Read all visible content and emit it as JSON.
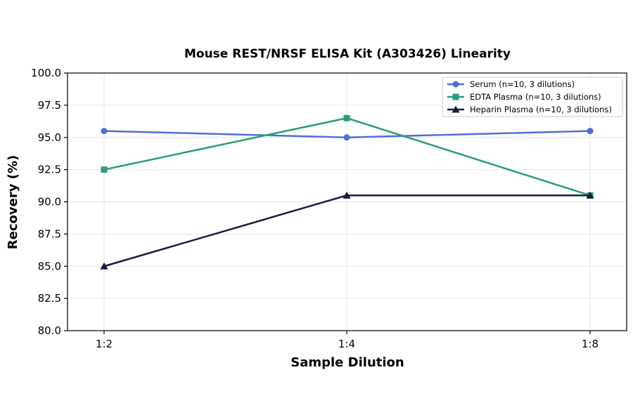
{
  "chart_data": {
    "type": "line",
    "title": "Mouse REST/NRSF ELISA Kit (A303426) Linearity",
    "xlabel": "Sample Dilution",
    "ylabel": "Recovery (%)",
    "categories": [
      "1:2",
      "1:4",
      "1:8"
    ],
    "ylim": [
      80.0,
      100.0
    ],
    "yticks": [
      "80.0",
      "82.5",
      "85.0",
      "87.5",
      "90.0",
      "92.5",
      "95.0",
      "97.5",
      "100.0"
    ],
    "grid": true,
    "legend_position": "top-right",
    "series": [
      {
        "name": "Serum (n=10, 3 dilutions)",
        "values": [
          95.5,
          95.0,
          95.5
        ],
        "color": "#4f6fd6",
        "marker": "circle"
      },
      {
        "name": "EDTA Plasma (n=10, 3 dilutions)",
        "values": [
          92.5,
          96.5,
          90.5
        ],
        "color": "#2a9d77",
        "marker": "square"
      },
      {
        "name": "Heparin Plasma (n=10, 3 dilutions)",
        "values": [
          85.0,
          90.5,
          90.5
        ],
        "color": "#141c42",
        "marker": "triangle"
      }
    ]
  }
}
